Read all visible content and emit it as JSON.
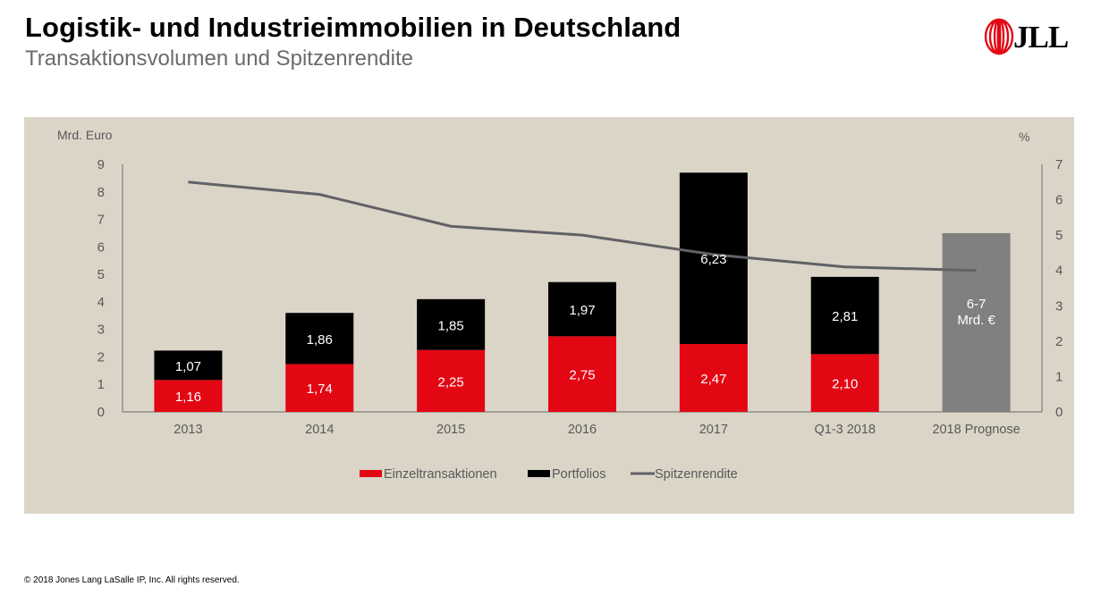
{
  "header": {
    "title": "Logistik- und Industrieimmobilien in Deutschland",
    "subtitle": "Transaktionsvolumen und Spitzenrendite",
    "logo_text": "JLL"
  },
  "footer": {
    "copyright": "© 2018 Jones Lang LaSalle IP, Inc. All rights reserved."
  },
  "colors": {
    "panel_bg": "#dbd5c8",
    "einzel": "#e30613",
    "portfolio": "#000000",
    "prognose": "#808080",
    "line": "#616166",
    "axis_text": "#595959",
    "brand_red": "#e30613"
  },
  "chart_data": {
    "type": "bar",
    "stacked": true,
    "title": "Transaktionsvolumen und Spitzenrendite",
    "ylabel_left": "Mrd. Euro",
    "ylabel_right": "%",
    "ylim_left": [
      0,
      9
    ],
    "ylim_right": [
      0,
      7
    ],
    "yticks_left": [
      "0",
      "1",
      "2",
      "3",
      "4",
      "5",
      "6",
      "7",
      "8",
      "9"
    ],
    "yticks_right": [
      "0",
      "1",
      "2",
      "3",
      "4",
      "5",
      "6",
      "7"
    ],
    "grid": false,
    "legend_position": "bottom",
    "categories": [
      "2013",
      "2014",
      "2015",
      "2016",
      "2017",
      "Q1-3 2018",
      "2018 Prognose"
    ],
    "series": [
      {
        "name": "Einzeltransaktionen",
        "type": "bar",
        "axis": "left",
        "values": [
          1.16,
          1.74,
          2.25,
          2.75,
          2.47,
          2.1,
          null
        ],
        "labels": [
          "1,16",
          "1,74",
          "2,25",
          "2,75",
          "2,47",
          "2,10",
          ""
        ]
      },
      {
        "name": "Portfolios",
        "type": "bar",
        "axis": "left",
        "values": [
          1.07,
          1.86,
          1.85,
          1.97,
          6.23,
          2.81,
          null
        ],
        "labels": [
          "1,07",
          "1,86",
          "1,85",
          "1,97",
          "6,23",
          "2,81",
          ""
        ]
      },
      {
        "name": "Prognose",
        "type": "bar",
        "axis": "left",
        "values": [
          null,
          null,
          null,
          null,
          null,
          null,
          6.5
        ],
        "labels": [
          "",
          "",
          "",
          "",
          "",
          "",
          "6-7\nMrd. €"
        ],
        "label_lines": [
          "6-7",
          "Mrd. €"
        ],
        "in_legend": false
      },
      {
        "name": "Spitzenrendite",
        "type": "line",
        "axis": "right",
        "values": [
          6.5,
          6.15,
          5.25,
          5.0,
          4.45,
          4.1,
          4.0
        ]
      }
    ],
    "legend": [
      "Einzeltransaktionen",
      "Portfolios",
      "Spitzenrendite"
    ]
  }
}
